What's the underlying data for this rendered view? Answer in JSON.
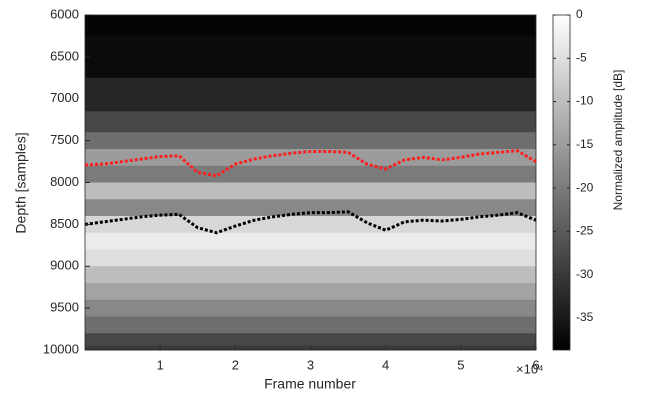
{
  "chart_data": {
    "type": "line",
    "x_label": "Frame number",
    "y_label": "Depth [samples]",
    "x": [
      0,
      2500,
      5000,
      7500,
      10000,
      12500,
      15000,
      17500,
      20000,
      22500,
      25000,
      27500,
      30000,
      32500,
      35000,
      37500,
      40000,
      42500,
      45000,
      47500,
      50000,
      52500,
      55000,
      57500,
      60000
    ],
    "xlim": [
      0,
      60000
    ],
    "xticks": [
      {
        "value": 10000,
        "label": "1"
      },
      {
        "value": 20000,
        "label": "2"
      },
      {
        "value": 30000,
        "label": "3"
      },
      {
        "value": 40000,
        "label": "4"
      },
      {
        "value": 50000,
        "label": "5"
      },
      {
        "value": 60000,
        "label": "6"
      }
    ],
    "x_exponent_label": "×10⁴",
    "ylim": [
      6000,
      10000
    ],
    "y_reversed": true,
    "yticks": [
      6000,
      6500,
      7000,
      7500,
      8000,
      8500,
      9000,
      9500,
      10000
    ],
    "line_style": "dotted",
    "series": [
      {
        "color": "#ff1f1f",
        "values": [
          7790,
          7780,
          7750,
          7720,
          7690,
          7680,
          7880,
          7920,
          7780,
          7720,
          7680,
          7650,
          7630,
          7630,
          7640,
          7780,
          7840,
          7730,
          7700,
          7730,
          7700,
          7660,
          7640,
          7620,
          7750
        ]
      },
      {
        "color": "#000000",
        "values": [
          8500,
          8470,
          8440,
          8410,
          8390,
          8380,
          8540,
          8600,
          8520,
          8450,
          8410,
          8380,
          8360,
          8360,
          8350,
          8480,
          8570,
          8470,
          8450,
          8460,
          8440,
          8410,
          8390,
          8360,
          8450
        ]
      }
    ],
    "heatmap": {
      "colormap": "gray",
      "depths": [
        6000,
        6500,
        7000,
        7300,
        7500,
        7700,
        7900,
        8100,
        8300,
        8500,
        8700,
        8900,
        9100,
        9300,
        9500,
        9700,
        9900,
        10000
      ],
      "values": [
        -38,
        -37,
        -33,
        -28,
        -22,
        -15,
        -20,
        -10,
        -18,
        -6,
        -3,
        -5,
        -10,
        -14,
        -18,
        -22,
        -28,
        -30
      ],
      "clim": [
        -38.7,
        0
      ],
      "colorbar_label": "Normalized amplitude [dB]",
      "colorbar_ticks": [
        0,
        -5,
        -10,
        -15,
        -20,
        -25,
        -30,
        -35
      ]
    }
  }
}
